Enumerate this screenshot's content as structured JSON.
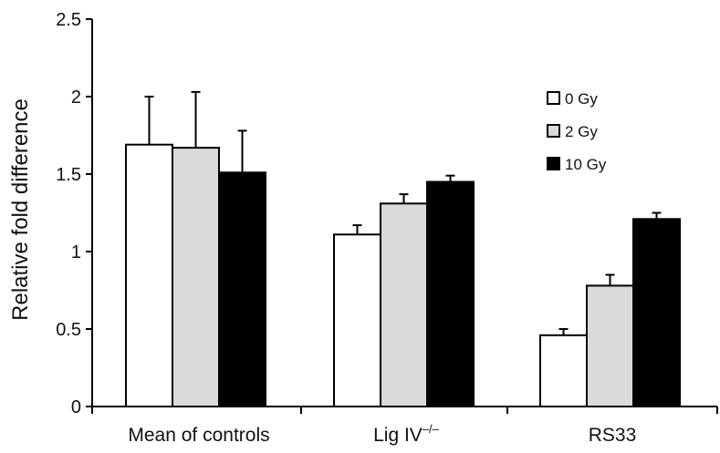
{
  "chart_data": {
    "type": "bar",
    "ylabel": "Relative fold difference",
    "ylim": [
      0,
      2.5
    ],
    "yticks": [
      "0",
      "0.5",
      "1",
      "1.5",
      "2",
      "2.5"
    ],
    "categories": [
      {
        "main": "Mean of controls",
        "sup": ""
      },
      {
        "main": "Lig IV",
        "sup": "–/–"
      },
      {
        "main": "RS33",
        "sup": ""
      }
    ],
    "series": [
      {
        "name": "0 Gy",
        "color": "#ffffff",
        "values": [
          1.69,
          1.11,
          0.46
        ],
        "errors": [
          0.31,
          0.06,
          0.04
        ]
      },
      {
        "name": "2 Gy",
        "color": "#d9d9d9",
        "values": [
          1.67,
          1.31,
          0.78
        ],
        "errors": [
          0.36,
          0.06,
          0.07
        ]
      },
      {
        "name": "10 Gy",
        "color": "#000000",
        "values": [
          1.51,
          1.45,
          1.21
        ],
        "errors": [
          0.27,
          0.04,
          0.04
        ]
      }
    ],
    "legend_position": "top-right",
    "grid": false
  }
}
